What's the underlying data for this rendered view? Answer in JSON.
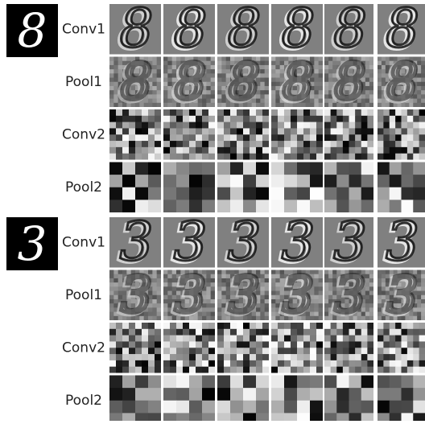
{
  "groups": [
    {
      "digit": "8",
      "rows": [
        "Conv1",
        "Pool1",
        "Conv2",
        "Pool2"
      ]
    },
    {
      "digit": "3",
      "rows": [
        "Conv1",
        "Pool1",
        "Conv2",
        "Pool2"
      ]
    }
  ]
}
